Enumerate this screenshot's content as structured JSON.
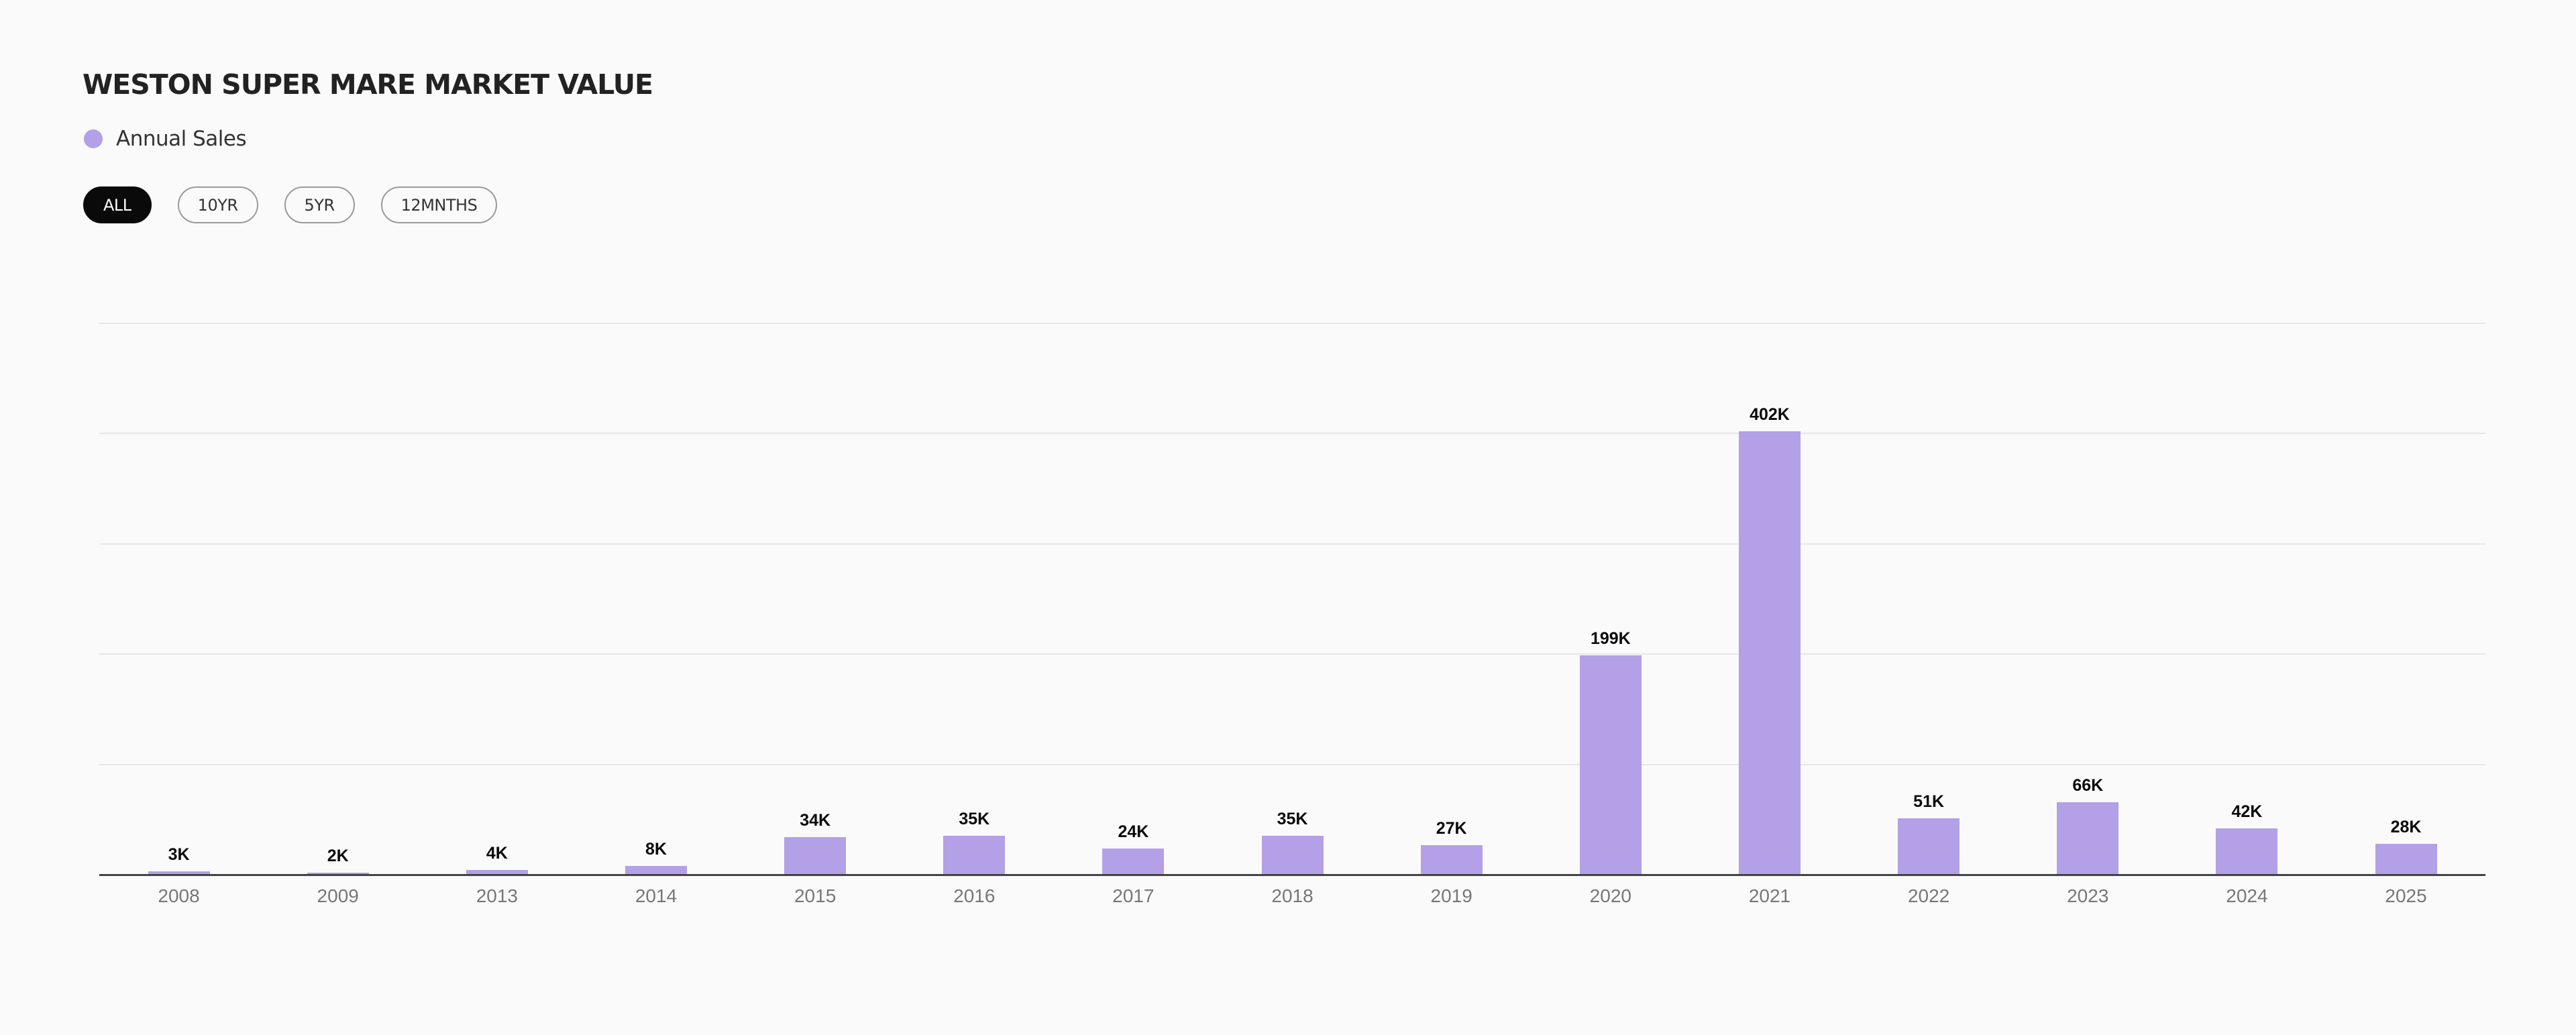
{
  "header": {
    "title": "WESTON SUPER MARE MARKET VALUE"
  },
  "legend": {
    "items": [
      {
        "label": "Annual Sales",
        "color": "#b3a0e6"
      }
    ]
  },
  "range_buttons": [
    {
      "label": "ALL",
      "active": true
    },
    {
      "label": "10YR",
      "active": false
    },
    {
      "label": "5YR",
      "active": false
    },
    {
      "label": "12MNTHS",
      "active": false
    }
  ],
  "colors": {
    "bar": "#b3a0e6",
    "background": "#fafafa",
    "active_button": "#0a0a0a",
    "gridline": "#e6e6e6",
    "axis": "#444444"
  },
  "chart_data": {
    "type": "bar",
    "title": "WESTON SUPER MARE MARKET VALUE",
    "xlabel": "",
    "ylabel": "",
    "categories": [
      "2008",
      "2009",
      "2013",
      "2014",
      "2015",
      "2016",
      "2017",
      "2018",
      "2019",
      "2020",
      "2021",
      "2022",
      "2023",
      "2024",
      "2025"
    ],
    "series": [
      {
        "name": "Annual Sales",
        "color": "#b3a0e6",
        "values": [
          3000,
          2000,
          4000,
          8000,
          34000,
          35000,
          24000,
          35000,
          27000,
          199000,
          402000,
          51000,
          66000,
          42000,
          28000
        ],
        "labels": [
          "3K",
          "2K",
          "4K",
          "8K",
          "34K",
          "35K",
          "24K",
          "35K",
          "27K",
          "199K",
          "402K",
          "51K",
          "66K",
          "42K",
          "28K"
        ]
      }
    ],
    "ylim": [
      0,
      500000
    ],
    "gridlines": [
      100000,
      200000,
      300000,
      400000,
      500000
    ],
    "grid": true,
    "y_tick_labels_visible": false,
    "legend_position": "top-left",
    "data_labels": true
  }
}
